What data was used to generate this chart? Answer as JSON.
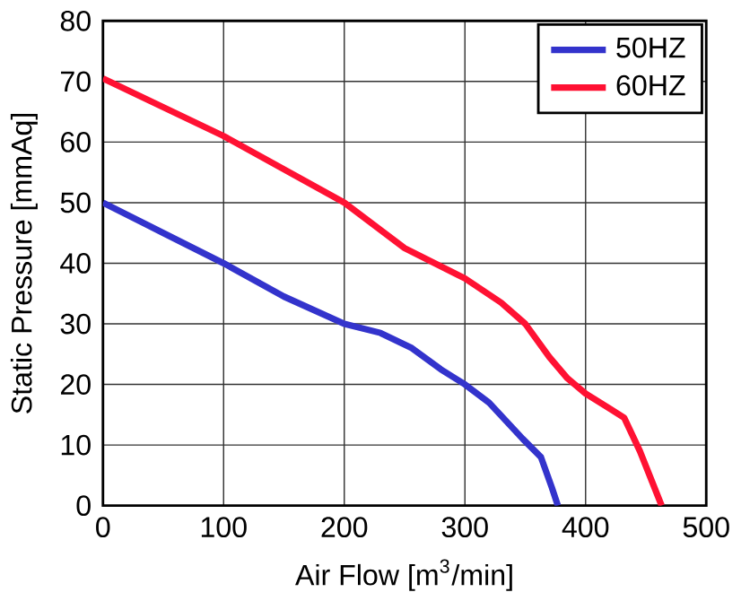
{
  "chart_data": {
    "type": "line",
    "xlabel": "Air Flow [m$^{3}$/min]",
    "ylabel": "Static Pressure [mmAq]",
    "xlim": [
      0,
      500
    ],
    "ylim": [
      0,
      80
    ],
    "xticks": [
      0,
      100,
      200,
      300,
      400,
      500
    ],
    "yticks": [
      0,
      10,
      20,
      30,
      40,
      50,
      60,
      70,
      80
    ],
    "grid": true,
    "legend": "top right",
    "marker": "none",
    "series": [
      {
        "name": "50HZ",
        "color": "#3333cc",
        "x": [
          0,
          50,
          100,
          150,
          200,
          230,
          256,
          280,
          300,
          320,
          348,
          363,
          372,
          377
        ],
        "values": [
          50,
          45,
          40,
          34.5,
          30,
          28.5,
          26,
          22.5,
          20,
          17,
          11,
          8,
          3,
          0
        ]
      },
      {
        "name": "60HZ",
        "color": "#ff1133",
        "x": [
          0,
          100,
          200,
          250,
          300,
          330,
          350,
          370,
          385,
          400,
          420,
          432,
          445,
          455,
          463
        ],
        "values": [
          70.5,
          61,
          50,
          42.5,
          37.5,
          33.5,
          30,
          24.5,
          21,
          18.5,
          16,
          14.5,
          9,
          4,
          0
        ]
      }
    ]
  }
}
